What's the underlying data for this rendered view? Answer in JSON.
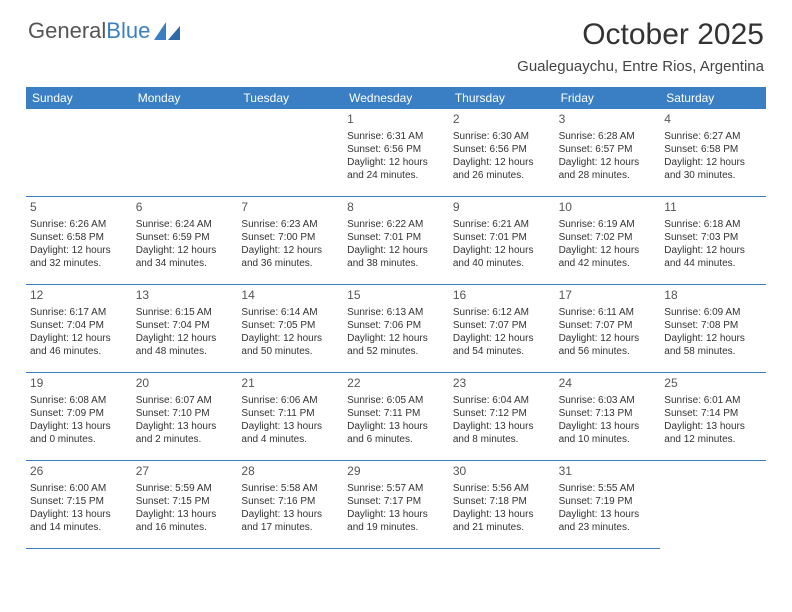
{
  "brand": {
    "part1": "General",
    "part2": "Blue"
  },
  "title": "October 2025",
  "location": "Gualeguaychu, Entre Rios, Argentina",
  "header_bg": "#3a7fc4",
  "header_text": "#ffffff",
  "border_color": "#3a7fc4",
  "day_headers": [
    "Sunday",
    "Monday",
    "Tuesday",
    "Wednesday",
    "Thursday",
    "Friday",
    "Saturday"
  ],
  "leading_blanks": 3,
  "days": [
    {
      "n": "1",
      "sr": "6:31 AM",
      "ss": "6:56 PM",
      "dl": "12 hours and 24 minutes."
    },
    {
      "n": "2",
      "sr": "6:30 AM",
      "ss": "6:56 PM",
      "dl": "12 hours and 26 minutes."
    },
    {
      "n": "3",
      "sr": "6:28 AM",
      "ss": "6:57 PM",
      "dl": "12 hours and 28 minutes."
    },
    {
      "n": "4",
      "sr": "6:27 AM",
      "ss": "6:58 PM",
      "dl": "12 hours and 30 minutes."
    },
    {
      "n": "5",
      "sr": "6:26 AM",
      "ss": "6:58 PM",
      "dl": "12 hours and 32 minutes."
    },
    {
      "n": "6",
      "sr": "6:24 AM",
      "ss": "6:59 PM",
      "dl": "12 hours and 34 minutes."
    },
    {
      "n": "7",
      "sr": "6:23 AM",
      "ss": "7:00 PM",
      "dl": "12 hours and 36 minutes."
    },
    {
      "n": "8",
      "sr": "6:22 AM",
      "ss": "7:01 PM",
      "dl": "12 hours and 38 minutes."
    },
    {
      "n": "9",
      "sr": "6:21 AM",
      "ss": "7:01 PM",
      "dl": "12 hours and 40 minutes."
    },
    {
      "n": "10",
      "sr": "6:19 AM",
      "ss": "7:02 PM",
      "dl": "12 hours and 42 minutes."
    },
    {
      "n": "11",
      "sr": "6:18 AM",
      "ss": "7:03 PM",
      "dl": "12 hours and 44 minutes."
    },
    {
      "n": "12",
      "sr": "6:17 AM",
      "ss": "7:04 PM",
      "dl": "12 hours and 46 minutes."
    },
    {
      "n": "13",
      "sr": "6:15 AM",
      "ss": "7:04 PM",
      "dl": "12 hours and 48 minutes."
    },
    {
      "n": "14",
      "sr": "6:14 AM",
      "ss": "7:05 PM",
      "dl": "12 hours and 50 minutes."
    },
    {
      "n": "15",
      "sr": "6:13 AM",
      "ss": "7:06 PM",
      "dl": "12 hours and 52 minutes."
    },
    {
      "n": "16",
      "sr": "6:12 AM",
      "ss": "7:07 PM",
      "dl": "12 hours and 54 minutes."
    },
    {
      "n": "17",
      "sr": "6:11 AM",
      "ss": "7:07 PM",
      "dl": "12 hours and 56 minutes."
    },
    {
      "n": "18",
      "sr": "6:09 AM",
      "ss": "7:08 PM",
      "dl": "12 hours and 58 minutes."
    },
    {
      "n": "19",
      "sr": "6:08 AM",
      "ss": "7:09 PM",
      "dl": "13 hours and 0 minutes."
    },
    {
      "n": "20",
      "sr": "6:07 AM",
      "ss": "7:10 PM",
      "dl": "13 hours and 2 minutes."
    },
    {
      "n": "21",
      "sr": "6:06 AM",
      "ss": "7:11 PM",
      "dl": "13 hours and 4 minutes."
    },
    {
      "n": "22",
      "sr": "6:05 AM",
      "ss": "7:11 PM",
      "dl": "13 hours and 6 minutes."
    },
    {
      "n": "23",
      "sr": "6:04 AM",
      "ss": "7:12 PM",
      "dl": "13 hours and 8 minutes."
    },
    {
      "n": "24",
      "sr": "6:03 AM",
      "ss": "7:13 PM",
      "dl": "13 hours and 10 minutes."
    },
    {
      "n": "25",
      "sr": "6:01 AM",
      "ss": "7:14 PM",
      "dl": "13 hours and 12 minutes."
    },
    {
      "n": "26",
      "sr": "6:00 AM",
      "ss": "7:15 PM",
      "dl": "13 hours and 14 minutes."
    },
    {
      "n": "27",
      "sr": "5:59 AM",
      "ss": "7:15 PM",
      "dl": "13 hours and 16 minutes."
    },
    {
      "n": "28",
      "sr": "5:58 AM",
      "ss": "7:16 PM",
      "dl": "13 hours and 17 minutes."
    },
    {
      "n": "29",
      "sr": "5:57 AM",
      "ss": "7:17 PM",
      "dl": "13 hours and 19 minutes."
    },
    {
      "n": "30",
      "sr": "5:56 AM",
      "ss": "7:18 PM",
      "dl": "13 hours and 21 minutes."
    },
    {
      "n": "31",
      "sr": "5:55 AM",
      "ss": "7:19 PM",
      "dl": "13 hours and 23 minutes."
    }
  ],
  "labels": {
    "sunrise": "Sunrise:",
    "sunset": "Sunset:",
    "daylight": "Daylight:"
  }
}
